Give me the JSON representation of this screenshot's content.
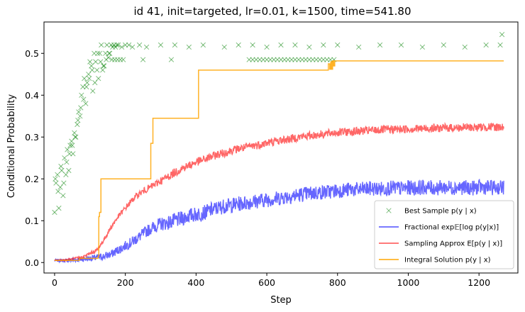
{
  "chart_data": {
    "type": "line",
    "title": "id 41, init=targeted, lr=0.01, k=1500, time=541.80",
    "xlabel": "Step",
    "ylabel": "Conditional Probability",
    "xlim": [
      -30,
      1310
    ],
    "ylim": [
      -0.025,
      0.575
    ],
    "xticks": [
      0,
      200,
      400,
      600,
      800,
      1000,
      1200
    ],
    "yticks": [
      0.0,
      0.1,
      0.2,
      0.3,
      0.4,
      0.5
    ],
    "legend_position": "bottom-right",
    "series": [
      {
        "name": "Best Sample p(y | x)",
        "kind": "scatter-x",
        "color": "#008000",
        "x": [
          0,
          4,
          8,
          12,
          16,
          20,
          24,
          28,
          32,
          36,
          40,
          44,
          48,
          52,
          56,
          60,
          64,
          68,
          72,
          76,
          80,
          84,
          88,
          92,
          96,
          100,
          104,
          108,
          112,
          116,
          120,
          124,
          128,
          132,
          136,
          140,
          144,
          148,
          152,
          156,
          160,
          164,
          168,
          172,
          176,
          180,
          190,
          200,
          210,
          220,
          240,
          260,
          300,
          340,
          380,
          420,
          480,
          520,
          560,
          600,
          640,
          680,
          720,
          760,
          800,
          860,
          920,
          980,
          1040,
          1100,
          1160,
          1220,
          1260,
          1265,
          2,
          10,
          18,
          26,
          34,
          42,
          50,
          58,
          66,
          74,
          82,
          90,
          98,
          106,
          114,
          122,
          130,
          138,
          146,
          154,
          162,
          170,
          178,
          186,
          194,
          250,
          330,
          550,
          560,
          570,
          580,
          590,
          600,
          610,
          620,
          630,
          640,
          650,
          660,
          670,
          680,
          690,
          700,
          710,
          720,
          730,
          740,
          750,
          760,
          770,
          780,
          790
        ],
        "y": [
          0.12,
          0.19,
          0.21,
          0.13,
          0.18,
          0.22,
          0.16,
          0.25,
          0.21,
          0.27,
          0.22,
          0.28,
          0.29,
          0.26,
          0.31,
          0.3,
          0.33,
          0.36,
          0.35,
          0.4,
          0.42,
          0.44,
          0.38,
          0.43,
          0.45,
          0.48,
          0.47,
          0.41,
          0.5,
          0.48,
          0.46,
          0.44,
          0.5,
          0.52,
          0.46,
          0.47,
          0.5,
          0.52,
          0.49,
          0.5,
          0.52,
          0.515,
          0.52,
          0.515,
          0.52,
          0.52,
          0.515,
          0.52,
          0.52,
          0.515,
          0.52,
          0.515,
          0.52,
          0.52,
          0.515,
          0.52,
          0.515,
          0.52,
          0.52,
          0.515,
          0.52,
          0.52,
          0.515,
          0.52,
          0.52,
          0.515,
          0.52,
          0.52,
          0.515,
          0.52,
          0.515,
          0.52,
          0.52,
          0.545,
          0.2,
          0.17,
          0.23,
          0.19,
          0.24,
          0.26,
          0.28,
          0.3,
          0.34,
          0.37,
          0.39,
          0.42,
          0.44,
          0.46,
          0.43,
          0.5,
          0.48,
          0.47,
          0.485,
          0.5,
          0.485,
          0.485,
          0.485,
          0.485,
          0.485,
          0.485,
          0.485,
          0.485,
          0.485,
          0.485,
          0.485,
          0.485,
          0.485,
          0.485,
          0.485,
          0.485,
          0.485,
          0.485,
          0.485,
          0.485,
          0.485,
          0.485,
          0.485,
          0.485,
          0.485,
          0.485,
          0.485,
          0.485,
          0.485,
          0.485,
          0.485,
          0.485
        ]
      },
      {
        "name": "Fractional exp𝔼[log p(y|x)]",
        "kind": "line",
        "color": "#0000ff",
        "x": [
          0,
          40,
          80,
          120,
          140,
          160,
          180,
          200,
          220,
          240,
          260,
          280,
          300,
          320,
          340,
          360,
          380,
          400,
          420,
          440,
          460,
          480,
          500,
          520,
          540,
          560,
          580,
          600,
          620,
          640,
          660,
          680,
          700,
          720,
          740,
          760,
          780,
          800,
          820,
          840,
          860,
          880,
          900,
          920,
          940,
          960,
          980,
          1000,
          1020,
          1040,
          1060,
          1080,
          1100,
          1120,
          1140,
          1160,
          1180,
          1200,
          1220,
          1240,
          1260,
          1270
        ],
        "y": [
          0.005,
          0.005,
          0.008,
          0.012,
          0.015,
          0.02,
          0.03,
          0.04,
          0.05,
          0.062,
          0.075,
          0.085,
          0.092,
          0.095,
          0.1,
          0.105,
          0.112,
          0.115,
          0.118,
          0.125,
          0.13,
          0.135,
          0.137,
          0.14,
          0.143,
          0.145,
          0.148,
          0.15,
          0.152,
          0.155,
          0.158,
          0.16,
          0.163,
          0.165,
          0.167,
          0.168,
          0.17,
          0.172,
          0.173,
          0.175,
          0.174,
          0.176,
          0.177,
          0.176,
          0.178,
          0.178,
          0.177,
          0.179,
          0.178,
          0.18,
          0.179,
          0.178,
          0.18,
          0.179,
          0.18,
          0.179,
          0.178,
          0.18,
          0.18,
          0.179,
          0.18,
          0.18
        ]
      },
      {
        "name": "Sampling Approx E[p(y | x)]",
        "kind": "line",
        "color": "#ff0000",
        "x": [
          0,
          40,
          80,
          120,
          140,
          160,
          180,
          200,
          220,
          240,
          260,
          280,
          300,
          320,
          340,
          360,
          380,
          400,
          420,
          440,
          460,
          480,
          500,
          520,
          540,
          560,
          580,
          600,
          620,
          640,
          660,
          680,
          700,
          720,
          740,
          760,
          780,
          800,
          820,
          840,
          860,
          880,
          900,
          920,
          940,
          960,
          980,
          1000,
          1020,
          1040,
          1060,
          1080,
          1100,
          1120,
          1140,
          1160,
          1180,
          1200,
          1220,
          1240,
          1260,
          1270
        ],
        "y": [
          0.005,
          0.007,
          0.013,
          0.03,
          0.055,
          0.085,
          0.11,
          0.13,
          0.15,
          0.165,
          0.175,
          0.185,
          0.195,
          0.205,
          0.215,
          0.225,
          0.232,
          0.24,
          0.245,
          0.252,
          0.258,
          0.262,
          0.268,
          0.272,
          0.275,
          0.279,
          0.282,
          0.286,
          0.289,
          0.292,
          0.295,
          0.298,
          0.301,
          0.303,
          0.305,
          0.307,
          0.309,
          0.311,
          0.312,
          0.313,
          0.314,
          0.315,
          0.316,
          0.317,
          0.318,
          0.318,
          0.319,
          0.319,
          0.32,
          0.32,
          0.321,
          0.321,
          0.322,
          0.322,
          0.322,
          0.323,
          0.323,
          0.323,
          0.324,
          0.324,
          0.324,
          0.324
        ]
      },
      {
        "name": "Integral Solution p(y | x)",
        "kind": "step",
        "color": "#ffa500",
        "x": [
          0,
          70,
          123,
          125,
          127,
          131,
          255,
          272,
          276,
          278,
          281,
          405,
          407,
          771,
          774,
          778,
          781,
          783,
          786,
          789,
          792,
          1270
        ],
        "y": [
          0.005,
          0.01,
          0.015,
          0.11,
          0.12,
          0.2,
          0.2,
          0.285,
          0.285,
          0.345,
          0.345,
          0.345,
          0.46,
          0.46,
          0.475,
          0.462,
          0.48,
          0.462,
          0.482,
          0.47,
          0.482,
          0.482
        ]
      }
    ]
  }
}
